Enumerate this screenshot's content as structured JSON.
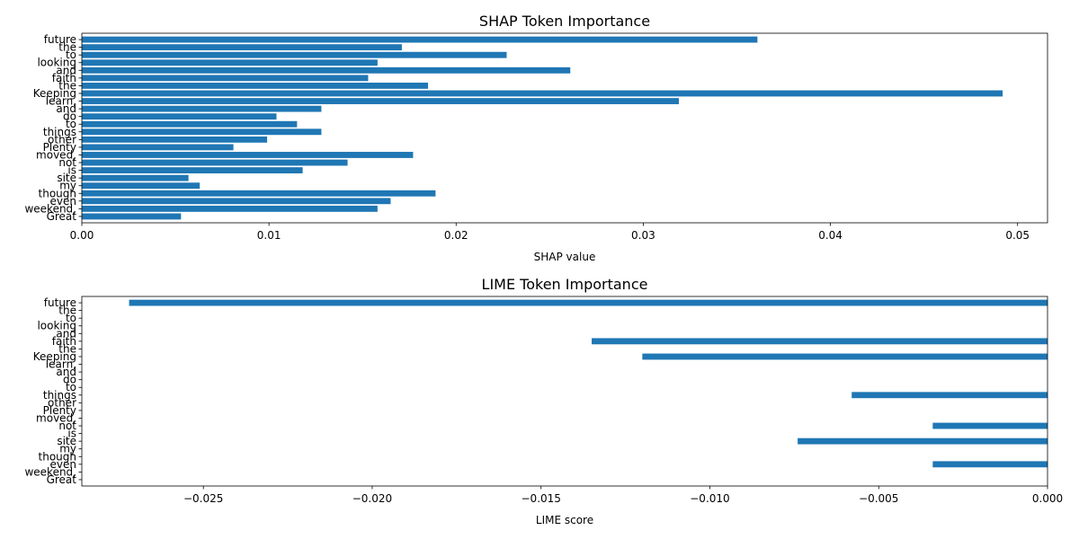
{
  "chart_data": [
    {
      "type": "bar",
      "orientation": "horizontal",
      "title": "SHAP Token Importance",
      "xlabel": "SHAP value",
      "ylabel": "",
      "xlim": [
        0,
        0.0516
      ],
      "xticks": [
        0.0,
        0.01,
        0.02,
        0.03,
        0.04,
        0.05
      ],
      "xtick_labels": [
        "0.00",
        "0.01",
        "0.02",
        "0.03",
        "0.04",
        "0.05"
      ],
      "grid": false,
      "bar_color": "#1f77b4",
      "categories": [
        "future",
        "the",
        "to",
        "looking",
        "and",
        "faith",
        "the",
        "Keeping",
        "learn,",
        "and",
        "do",
        "to",
        "things",
        "other",
        "Plenty",
        "moved,",
        "not",
        "is",
        "site",
        "my",
        "though",
        "even",
        "weekend,",
        "Great"
      ],
      "values": [
        0.0361,
        0.0171,
        0.0227,
        0.0158,
        0.0261,
        0.0153,
        0.0185,
        0.0492,
        0.0319,
        0.0128,
        0.0104,
        0.0115,
        0.0128,
        0.0099,
        0.0081,
        0.0177,
        0.0142,
        0.0118,
        0.0057,
        0.0063,
        0.0189,
        0.0165,
        0.0158,
        0.0053
      ]
    },
    {
      "type": "bar",
      "orientation": "horizontal",
      "title": "LIME Token Importance",
      "xlabel": "LIME score",
      "ylabel": "",
      "xlim": [
        -0.0286,
        0.0
      ],
      "xticks": [
        -0.025,
        -0.02,
        -0.015,
        -0.01,
        -0.005,
        0.0
      ],
      "xtick_labels": [
        "−0.025",
        "−0.020",
        "−0.015",
        "−0.010",
        "−0.005",
        "0.000"
      ],
      "grid": false,
      "bar_color": "#1f77b4",
      "categories": [
        "future",
        "the",
        "to",
        "looking",
        "and",
        "faith",
        "the",
        "Keeping",
        "learn,",
        "and",
        "do",
        "to",
        "things",
        "other",
        "Plenty",
        "moved,",
        "not",
        "is",
        "site",
        "my",
        "though",
        "even",
        "weekend,",
        "Great"
      ],
      "values": [
        -0.0272,
        0,
        0,
        0,
        0,
        -0.0135,
        0,
        -0.012,
        0,
        0,
        0,
        0,
        -0.0058,
        0,
        0,
        0,
        -0.0034,
        0,
        -0.0074,
        0,
        0,
        -0.0034,
        0,
        0
      ]
    }
  ]
}
